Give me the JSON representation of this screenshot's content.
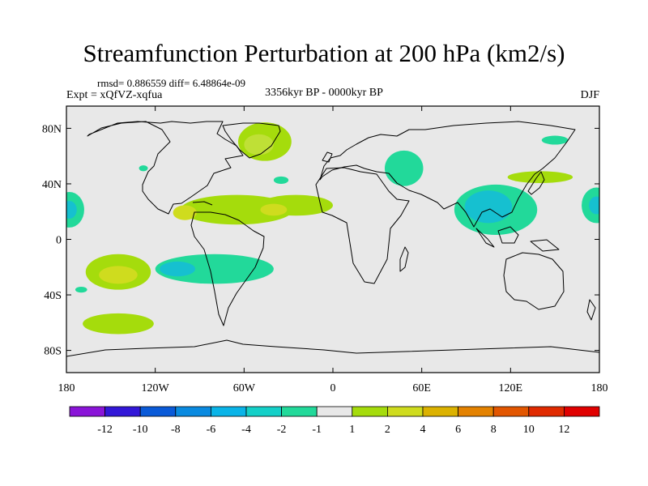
{
  "header": {
    "title": "Streamfunction Perturbation at 200 hPa (km2/s)",
    "stats": "rmsd= 0.886559 diff= 6.48864e-09",
    "experiment": "Expt = xQfVZ-xqfua",
    "period": "3356kyr BP - 0000kyr BP",
    "season": "DJF"
  },
  "map": {
    "background_color": "#e8e8e8",
    "lat_ticks": [
      {
        "label": "80N",
        "lat": 75
      },
      {
        "label": "40N",
        "lat": 37.5
      },
      {
        "label": "0",
        "lat": 0
      },
      {
        "label": "40S",
        "lat": -37.5
      },
      {
        "label": "80S",
        "lat": -75
      }
    ],
    "lon_ticks": [
      {
        "label": "180",
        "lon": -180
      },
      {
        "label": "120W",
        "lon": -120
      },
      {
        "label": "60W",
        "lon": -60
      },
      {
        "label": "0",
        "lon": 0
      },
      {
        "label": "60E",
        "lon": 60
      },
      {
        "label": "120E",
        "lon": 120
      },
      {
        "label": "180",
        "lon": 180
      }
    ],
    "anomalies": [
      {
        "name": "greenland",
        "lon": -46,
        "lat": 66,
        "rx": 18,
        "ry": 13,
        "color": "#a5dc0c"
      },
      {
        "name": "greenland-core",
        "lon": -50,
        "lat": 64,
        "rx": 10,
        "ry": 7,
        "color": "#bfe036"
      },
      {
        "name": "north-atlantic",
        "lon": -35,
        "lat": 40,
        "rx": 5,
        "ry": 2.5,
        "color": "#22d99a"
      },
      {
        "name": "alaska",
        "lon": -128,
        "lat": 48,
        "rx": 3,
        "ry": 2,
        "color": "#22d99a"
      },
      {
        "name": "west-pacific-edge",
        "lon": -178,
        "lat": 20,
        "rx": 10,
        "ry": 12,
        "color": "#22d99a"
      },
      {
        "name": "west-pacific-edge-core",
        "lon": -178,
        "lat": 20,
        "rx": 5,
        "ry": 6,
        "color": "#16c0d0"
      },
      {
        "name": "subtropical-band",
        "lon": -65,
        "lat": 20,
        "rx": 38,
        "ry": 10,
        "color": "#a5dc0c"
      },
      {
        "name": "subtropical-east",
        "lon": -25,
        "lat": 23,
        "rx": 25,
        "ry": 7,
        "color": "#a5dc0c"
      },
      {
        "name": "mexico-warm",
        "lon": -100,
        "lat": 18,
        "rx": 8,
        "ry": 5,
        "color": "#cfdc1e"
      },
      {
        "name": "atlantic-warm",
        "lon": -40,
        "lat": 20,
        "rx": 9,
        "ry": 4,
        "color": "#cfdc1e"
      },
      {
        "name": "east-pacific-south",
        "lon": -145,
        "lat": -22,
        "rx": 22,
        "ry": 12,
        "color": "#a5dc0c"
      },
      {
        "name": "east-pacific-south-core",
        "lon": -145,
        "lat": -24,
        "rx": 13,
        "ry": 6,
        "color": "#cfdc1e"
      },
      {
        "name": "south-america-band",
        "lon": -80,
        "lat": -20,
        "rx": 40,
        "ry": 10,
        "color": "#22d99a"
      },
      {
        "name": "south-america-core",
        "lon": -105,
        "lat": -20,
        "rx": 12,
        "ry": 5,
        "color": "#16c0d0"
      },
      {
        "name": "southwest-pacific",
        "lon": -170,
        "lat": -34,
        "rx": 4,
        "ry": 2,
        "color": "#22d99a"
      },
      {
        "name": "south-pacific-50s",
        "lon": -145,
        "lat": -57,
        "rx": 24,
        "ry": 7,
        "color": "#a5dc0c"
      },
      {
        "name": "caspian",
        "lon": 48,
        "lat": 48,
        "rx": 13,
        "ry": 12,
        "color": "#22d99a"
      },
      {
        "name": "kamchatka",
        "lon": 150,
        "lat": 67,
        "rx": 9,
        "ry": 3,
        "color": "#22d99a"
      },
      {
        "name": "japan-band",
        "lon": 140,
        "lat": 42,
        "rx": 22,
        "ry": 4,
        "color": "#a5dc0c"
      },
      {
        "name": "east-asia",
        "lon": 110,
        "lat": 20,
        "rx": 28,
        "ry": 17,
        "color": "#22d99a"
      },
      {
        "name": "east-asia-core",
        "lon": 105,
        "lat": 22,
        "rx": 16,
        "ry": 11,
        "color": "#16c0d0"
      },
      {
        "name": "central-pacific-edge",
        "lon": 178,
        "lat": 23,
        "rx": 10,
        "ry": 12,
        "color": "#22d99a"
      },
      {
        "name": "central-pacific-edge-core",
        "lon": 178,
        "lat": 23,
        "rx": 5,
        "ry": 6,
        "color": "#16c0d0"
      }
    ]
  },
  "colorbar": {
    "colors": [
      "#8a14d8",
      "#3217d8",
      "#0a5ad8",
      "#0a8ae0",
      "#0ab4e8",
      "#14d0c8",
      "#22d99a",
      "#e8e8e8",
      "#a5dc0c",
      "#cfdc1e",
      "#dcb200",
      "#e48200",
      "#e25600",
      "#e02a00",
      "#e00000"
    ],
    "labels": [
      "-12",
      "-10",
      "-8",
      "-6",
      "-4",
      "-2",
      "-1",
      "1",
      "2",
      "4",
      "6",
      "8",
      "10",
      "12"
    ]
  }
}
